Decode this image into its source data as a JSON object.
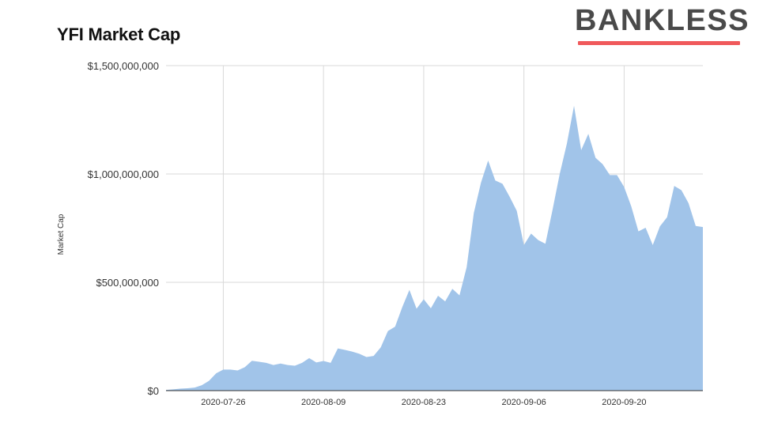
{
  "brand": {
    "name": "BANKLESS",
    "underline_color": "#f0595b"
  },
  "chart_data": {
    "type": "area",
    "title": "YFI Market Cap",
    "xlabel": "",
    "ylabel": "Market Cap",
    "ylim": [
      0,
      1500000000
    ],
    "grid": true,
    "legend": "none",
    "fill_color": "#a1c4e9",
    "y_ticks": [
      {
        "value": 0,
        "label": "$0"
      },
      {
        "value": 500000000,
        "label": "$500,000,000"
      },
      {
        "value": 1000000000,
        "label": "$1,000,000,000"
      },
      {
        "value": 1500000000,
        "label": "$1,500,000,000"
      }
    ],
    "x_ticks": [
      "2020-07-26",
      "2020-08-09",
      "2020-08-23",
      "2020-09-06",
      "2020-09-20"
    ],
    "x": [
      "2020-07-18",
      "2020-07-19",
      "2020-07-20",
      "2020-07-21",
      "2020-07-22",
      "2020-07-23",
      "2020-07-24",
      "2020-07-25",
      "2020-07-26",
      "2020-07-27",
      "2020-07-28",
      "2020-07-29",
      "2020-07-30",
      "2020-07-31",
      "2020-08-01",
      "2020-08-02",
      "2020-08-03",
      "2020-08-04",
      "2020-08-05",
      "2020-08-06",
      "2020-08-07",
      "2020-08-08",
      "2020-08-09",
      "2020-08-10",
      "2020-08-11",
      "2020-08-12",
      "2020-08-13",
      "2020-08-14",
      "2020-08-15",
      "2020-08-16",
      "2020-08-17",
      "2020-08-18",
      "2020-08-19",
      "2020-08-20",
      "2020-08-21",
      "2020-08-22",
      "2020-08-23",
      "2020-08-24",
      "2020-08-25",
      "2020-08-26",
      "2020-08-27",
      "2020-08-28",
      "2020-08-29",
      "2020-08-30",
      "2020-08-31",
      "2020-09-01",
      "2020-09-02",
      "2020-09-03",
      "2020-09-04",
      "2020-09-05",
      "2020-09-06",
      "2020-09-07",
      "2020-09-08",
      "2020-09-09",
      "2020-09-10",
      "2020-09-11",
      "2020-09-12",
      "2020-09-13",
      "2020-09-14",
      "2020-09-15",
      "2020-09-16",
      "2020-09-17",
      "2020-09-18",
      "2020-09-19",
      "2020-09-20",
      "2020-09-21",
      "2020-09-22",
      "2020-09-23",
      "2020-09-24",
      "2020-09-25",
      "2020-09-26",
      "2020-09-27",
      "2020-09-28",
      "2020-09-29",
      "2020-09-30",
      "2020-10-01"
    ],
    "values": [
      3000000,
      6000000,
      9000000,
      11000000,
      14000000,
      25000000,
      45000000,
      80000000,
      97000000,
      97000000,
      93000000,
      108000000,
      138000000,
      133000000,
      128000000,
      118000000,
      125000000,
      118000000,
      115000000,
      128000000,
      150000000,
      130000000,
      137000000,
      128000000,
      195000000,
      188000000,
      180000000,
      170000000,
      155000000,
      160000000,
      200000000,
      275000000,
      295000000,
      385000000,
      465000000,
      378000000,
      422000000,
      380000000,
      438000000,
      412000000,
      470000000,
      440000000,
      570000000,
      820000000,
      960000000,
      1062000000,
      970000000,
      955000000,
      895000000,
      830000000,
      672000000,
      725000000,
      695000000,
      678000000,
      835000000,
      1000000000,
      1140000000,
      1315000000,
      1110000000,
      1185000000,
      1075000000,
      1045000000,
      995000000,
      995000000,
      940000000,
      850000000,
      735000000,
      752000000,
      672000000,
      758000000,
      800000000,
      945000000,
      925000000,
      865000000,
      760000000,
      755000000
    ]
  }
}
